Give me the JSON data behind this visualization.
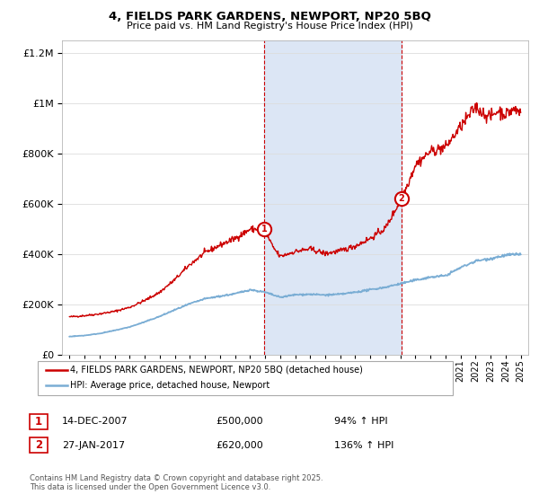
{
  "title": "4, FIELDS PARK GARDENS, NEWPORT, NP20 5BQ",
  "subtitle": "Price paid vs. HM Land Registry's House Price Index (HPI)",
  "red_label": "4, FIELDS PARK GARDENS, NEWPORT, NP20 5BQ (detached house)",
  "blue_label": "HPI: Average price, detached house, Newport",
  "annotation1_date": "14-DEC-2007",
  "annotation1_price": "£500,000",
  "annotation1_pct": "94% ↑ HPI",
  "annotation2_date": "27-JAN-2017",
  "annotation2_price": "£620,000",
  "annotation2_pct": "136% ↑ HPI",
  "footnote": "Contains HM Land Registry data © Crown copyright and database right 2025.\nThis data is licensed under the Open Government Licence v3.0.",
  "vline1_year": 2007.95,
  "vline2_year": 2017.07,
  "marker1_year": 2007.95,
  "marker1_value": 500000,
  "marker2_year": 2017.07,
  "marker2_value": 620000,
  "ylim": [
    0,
    1250000
  ],
  "xlim": [
    1994.5,
    2025.5
  ],
  "shade_color": "#dce6f5",
  "red_color": "#cc0000",
  "blue_color": "#7aadd4",
  "background_color": "#ffffff",
  "grid_color": "#dddddd",
  "red_years_raw": [
    1995,
    1996,
    1997,
    1998,
    1999,
    2000,
    2001,
    2002,
    2003,
    2004,
    2005,
    2006,
    2007,
    2007.95,
    2008.5,
    2009,
    2010,
    2011,
    2012,
    2013,
    2014,
    2015,
    2016,
    2017.07,
    2017.5,
    2018,
    2019,
    2020,
    2021,
    2022,
    2022.5,
    2023,
    2023.5,
    2024,
    2024.5,
    2025
  ],
  "red_values_raw": [
    150000,
    155000,
    162000,
    172000,
    188000,
    215000,
    248000,
    298000,
    358000,
    405000,
    435000,
    462000,
    498000,
    500000,
    430000,
    390000,
    410000,
    420000,
    402000,
    412000,
    432000,
    462000,
    502000,
    620000,
    680000,
    755000,
    808000,
    825000,
    905000,
    985000,
    960000,
    945000,
    970000,
    955000,
    975000,
    965000
  ],
  "blue_years_raw": [
    1995,
    1996,
    1997,
    1998,
    1999,
    2000,
    2001,
    2002,
    2003,
    2004,
    2005,
    2006,
    2007,
    2008,
    2009,
    2010,
    2011,
    2012,
    2013,
    2014,
    2015,
    2016,
    2017,
    2018,
    2019,
    2020,
    2021,
    2022,
    2023,
    2024,
    2025
  ],
  "blue_values_raw": [
    72000,
    76000,
    84000,
    96000,
    110000,
    130000,
    152000,
    178000,
    202000,
    222000,
    232000,
    242000,
    258000,
    248000,
    228000,
    238000,
    240000,
    237000,
    240000,
    248000,
    258000,
    268000,
    282000,
    296000,
    308000,
    314000,
    346000,
    372000,
    382000,
    395000,
    400000
  ]
}
